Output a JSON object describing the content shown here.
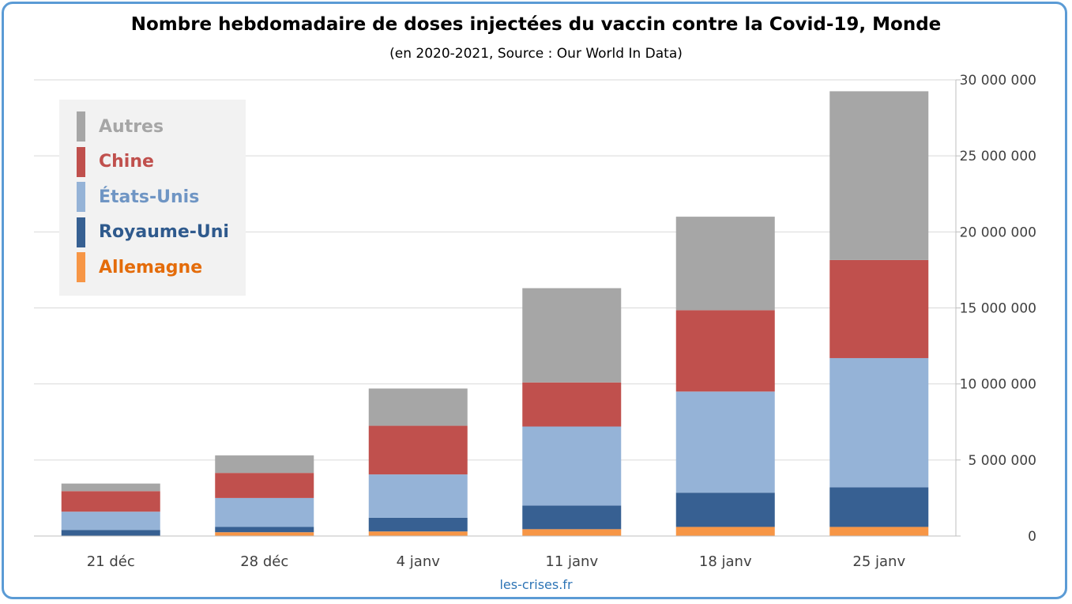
{
  "chart_data": {
    "type": "bar",
    "stacked": true,
    "title": "Nombre hebdomadaire de doses injectées du vaccin contre la Covid-19, Monde",
    "subtitle": "(en 2020-2021, Source : Our World In Data)",
    "xlabel": "",
    "ylabel": "",
    "categories": [
      "21 déc",
      "28 déc",
      "4 janv",
      "11 janv",
      "18 janv",
      "25 janv"
    ],
    "series": [
      {
        "name": "Allemagne",
        "color": "#f79646",
        "values": [
          0,
          250000,
          300000,
          450000,
          600000,
          600000
        ]
      },
      {
        "name": "Royaume-Uni",
        "color": "#376092",
        "values": [
          400000,
          350000,
          900000,
          1550000,
          2250000,
          2600000
        ]
      },
      {
        "name": "États-Unis",
        "color": "#95b3d7",
        "values": [
          1200000,
          1900000,
          2850000,
          5200000,
          6650000,
          8500000
        ]
      },
      {
        "name": "Chine",
        "color": "#c0504d",
        "values": [
          1350000,
          1650000,
          3200000,
          2900000,
          5350000,
          6450000
        ]
      },
      {
        "name": "Autres",
        "color": "#a6a6a6",
        "values": [
          500000,
          1150000,
          2450000,
          6200000,
          6150000,
          11100000
        ]
      }
    ],
    "legend_order": [
      "Autres",
      "Chine",
      "États-Unis",
      "Royaume-Uni",
      "Allemagne"
    ],
    "legend_colors": {
      "Autres": "#a6a6a6",
      "Chine": "#c0504d",
      "États-Unis": "#6f95c4",
      "Royaume-Uni": "#2f5a8d",
      "Allemagne": "#e46c0a"
    },
    "ylim": [
      0,
      30000000
    ],
    "yticks": [
      0,
      5000000,
      10000000,
      15000000,
      20000000,
      25000000,
      30000000
    ],
    "ytick_labels": [
      "0",
      "5 000 000",
      "10 000 000",
      "15 000 000",
      "20 000 000",
      "25 000 000",
      "30 000 000"
    ],
    "y_axis_position": "right",
    "grid": true,
    "legend_position": "top-left"
  },
  "source_credit": "les-crises.fr",
  "colors": {
    "frame_border": "#5b9bd5",
    "gridline": "#d9d9d9",
    "axis_text": "#404040",
    "credit_text": "#2e75b6"
  }
}
